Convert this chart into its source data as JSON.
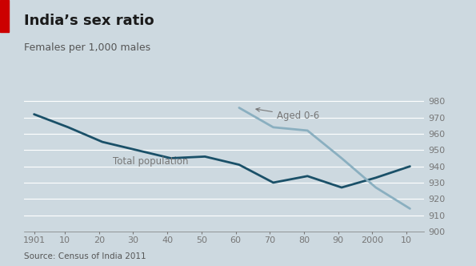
{
  "title": "India’s sex ratio",
  "subtitle": "Females per 1,000 males",
  "source": "Source: Census of India 2011",
  "bg_color": "#cdd9e0",
  "grid_color": "#ffffff",
  "total_pop": {
    "x": [
      1901,
      1911,
      1921,
      1931,
      1941,
      1951,
      1961,
      1971,
      1981,
      1991,
      2001,
      2011
    ],
    "y": [
      972,
      964,
      955,
      950,
      945,
      946,
      941,
      930,
      934,
      927,
      933,
      940
    ],
    "color": "#1a5068",
    "linewidth": 2.0,
    "label": "Total population"
  },
  "aged_06": {
    "x": [
      1961,
      1971,
      1981,
      1991,
      2001,
      2011
    ],
    "y": [
      976,
      964,
      962,
      945,
      927,
      914
    ],
    "color": "#8aafc0",
    "linewidth": 2.0,
    "label": "Aged 0-6"
  },
  "xlim": [
    1898,
    2015
  ],
  "ylim": [
    900,
    985
  ],
  "yticks": [
    900,
    910,
    920,
    930,
    940,
    950,
    960,
    970,
    980
  ],
  "xtick_labels": [
    "1901",
    "10",
    "20",
    "30",
    "40",
    "50",
    "60",
    "70",
    "80",
    "90",
    "2000",
    "10"
  ],
  "xtick_positions": [
    1901,
    1910,
    1920,
    1930,
    1940,
    1950,
    1960,
    1970,
    1980,
    1990,
    2000,
    2010
  ],
  "title_fontsize": 13,
  "subtitle_fontsize": 9,
  "label_fontsize": 8.5,
  "tick_fontsize": 8,
  "source_fontsize": 7.5,
  "title_color": "#1a1a1a",
  "text_color": "#555555",
  "tick_color": "#777777",
  "red_bar_color": "#cc0000"
}
